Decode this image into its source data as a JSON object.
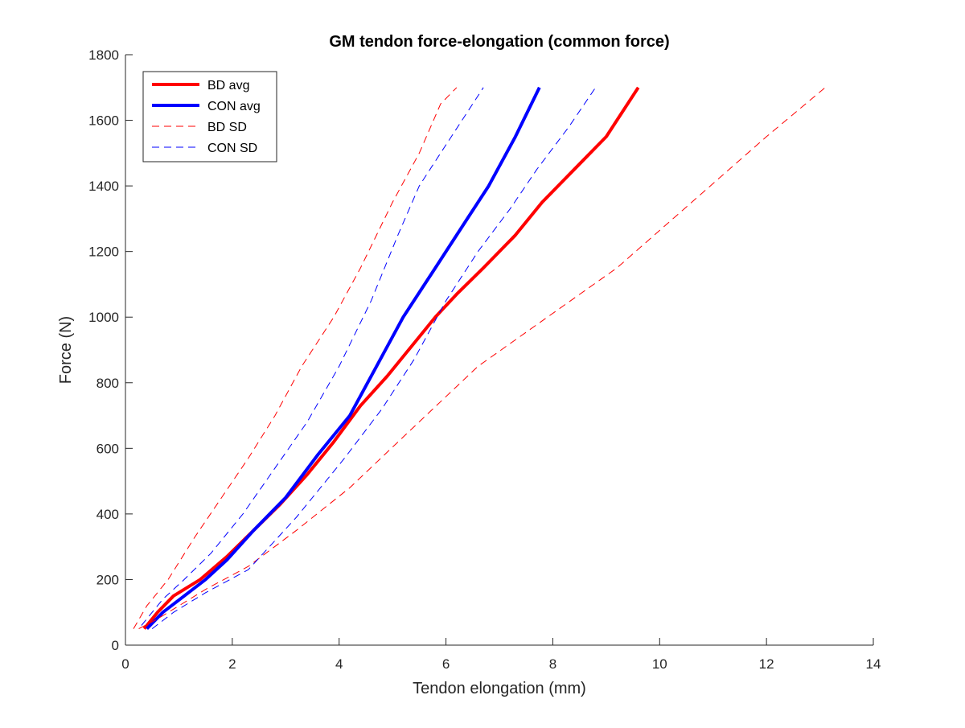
{
  "chart_data": {
    "type": "line",
    "title": "GM tendon force-elongation (common force)",
    "xlabel": "Tendon elongation (mm)",
    "ylabel": "Force (N)",
    "xlim": [
      0,
      14
    ],
    "ylim": [
      0,
      1800
    ],
    "xticks": [
      0,
      2,
      4,
      6,
      8,
      10,
      12,
      14
    ],
    "yticks": [
      0,
      200,
      400,
      600,
      800,
      1000,
      1200,
      1400,
      1600,
      1800
    ],
    "grid": false,
    "legend_position": "top-left",
    "series": [
      {
        "name": "BD avg",
        "color": "#ff0000",
        "style": "solid",
        "x": [
          0.35,
          0.6,
          0.9,
          1.4,
          1.9,
          2.4,
          2.9,
          3.4,
          3.9,
          4.4,
          4.9,
          5.3,
          5.8,
          6.2,
          6.7,
          7.3,
          7.8,
          8.4,
          9.0,
          9.6
        ],
        "y": [
          50,
          100,
          150,
          200,
          270,
          350,
          430,
          520,
          620,
          730,
          820,
          900,
          1000,
          1070,
          1150,
          1250,
          1350,
          1450,
          1550,
          1700
        ]
      },
      {
        "name": "CON avg",
        "color": "#0000ff",
        "style": "solid",
        "x": [
          0.4,
          0.7,
          1.1,
          1.5,
          1.9,
          2.4,
          3.0,
          3.6,
          4.2,
          4.7,
          5.2,
          5.8,
          6.4,
          6.8,
          7.3,
          7.75
        ],
        "y": [
          50,
          100,
          150,
          200,
          260,
          350,
          450,
          580,
          700,
          850,
          1000,
          1150,
          1300,
          1400,
          1550,
          1700
        ]
      },
      {
        "name": "BD SD",
        "color": "#ff0000",
        "style": "dashed",
        "x": [
          0.15,
          0.4,
          0.8,
          1.3,
          1.8,
          2.3,
          2.8,
          3.3,
          3.9,
          4.4,
          5.0,
          5.5,
          5.9,
          6.2
        ],
        "y": [
          50,
          120,
          200,
          330,
          450,
          570,
          700,
          850,
          1000,
          1150,
          1350,
          1500,
          1650,
          1700
        ]
      },
      {
        "name": "BD SD",
        "color": "#ff0000",
        "style": "dashed",
        "x": [
          0.25,
          0.6,
          1.0,
          1.5,
          2.3,
          3.2,
          4.2,
          5.3,
          6.6,
          7.9,
          9.2,
          10.6,
          12.0,
          13.1
        ],
        "y": [
          50,
          80,
          120,
          170,
          240,
          350,
          480,
          650,
          850,
          1000,
          1150,
          1350,
          1550,
          1700
        ]
      },
      {
        "name": "CON SD",
        "color": "#0000ff",
        "style": "dashed",
        "x": [
          0.3,
          0.7,
          1.1,
          1.6,
          2.2,
          2.8,
          3.4,
          4.0,
          4.6,
          5.1,
          5.5,
          5.9,
          6.3,
          6.7
        ],
        "y": [
          60,
          140,
          200,
          280,
          400,
          540,
          680,
          850,
          1050,
          1250,
          1400,
          1500,
          1600,
          1700
        ]
      },
      {
        "name": "CON SD",
        "color": "#0000ff",
        "style": "dashed",
        "x": [
          0.5,
          0.9,
          1.5,
          2.3,
          3.2,
          4.1,
          4.8,
          5.4,
          6.0,
          6.6,
          7.2,
          7.7,
          8.3,
          8.8
        ],
        "y": [
          50,
          100,
          160,
          230,
          390,
          570,
          720,
          870,
          1050,
          1200,
          1330,
          1450,
          1580,
          1700
        ]
      }
    ],
    "legend": [
      {
        "label": "BD avg",
        "color": "#ff0000",
        "style": "solid"
      },
      {
        "label": "CON avg",
        "color": "#0000ff",
        "style": "solid"
      },
      {
        "label": "BD SD",
        "color": "#ff0000",
        "style": "dashed"
      },
      {
        "label": "CON SD",
        "color": "#0000ff",
        "style": "dashed"
      }
    ]
  }
}
